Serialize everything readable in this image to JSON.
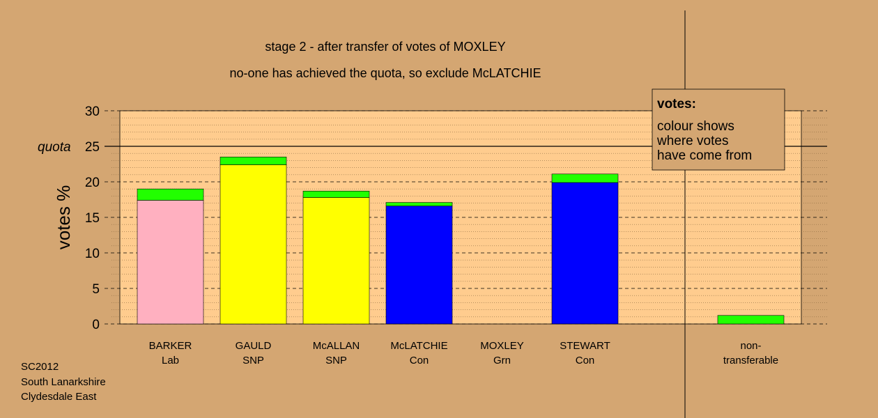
{
  "chart_data": {
    "type": "stacked_bar",
    "title": "stage 2 - after transfer of votes of MOXLEY",
    "subtitle": "no-one has achieved the quota, so exclude McLATCHIE",
    "y_label": "votes %",
    "categories": [
      "BARKER\nLab",
      "GAULD\nSNP",
      "McALLAN\nSNP",
      "McLATCHIE\nCon",
      "MOXLEY\nGrn",
      "STEWART\nCon",
      null,
      "non-\ntransferable"
    ],
    "series": [
      {
        "colors": [
          "#ffb0c0",
          "#ffff00",
          "#ffff00",
          "#0000ff",
          "#00aa00",
          "#0000ff",
          null,
          "#22ff00"
        ],
        "values": [
          17.4,
          22.4,
          17.8,
          16.6,
          0,
          19.9,
          null,
          0
        ]
      },
      {
        "color": "#22ff00",
        "values": [
          1.6,
          1.1,
          0.9,
          0.5,
          0,
          1.2,
          null,
          1.2
        ]
      }
    ],
    "ylim": [
      0,
      30
    ],
    "yticks": [
      0,
      5,
      10,
      15,
      20,
      25,
      30
    ],
    "grid": true,
    "quota": {
      "value": 25,
      "label": "quota"
    },
    "legend_title": "votes:",
    "legend_text": [
      "colour shows",
      "where votes",
      "have come from"
    ],
    "footer": [
      "SC2012",
      "South Lanarkshire",
      "Clydesdale East"
    ]
  }
}
